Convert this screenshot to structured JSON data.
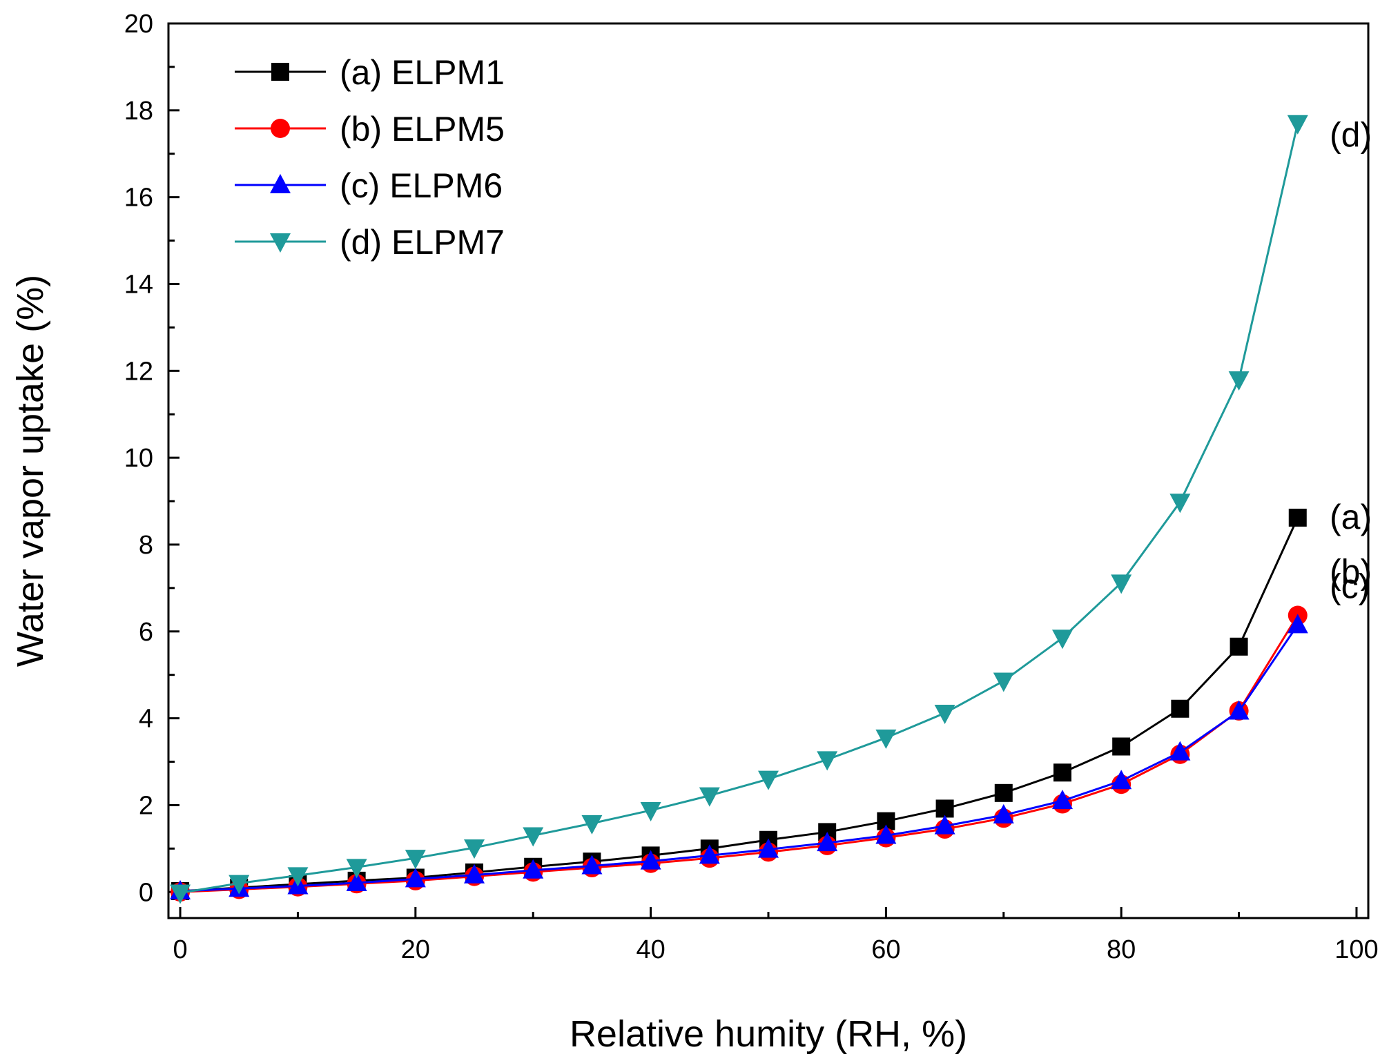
{
  "chart_data": {
    "type": "line",
    "title": "",
    "xlabel": "Relative humity (RH, %)",
    "ylabel": "Water vapor uptake (%)",
    "xlim": [
      -1,
      101
    ],
    "ylim": [
      -0.6,
      20
    ],
    "xticks": [
      0,
      20,
      40,
      60,
      80,
      100
    ],
    "yticks": [
      0,
      2,
      4,
      6,
      8,
      10,
      12,
      14,
      16,
      18,
      20
    ],
    "grid": false,
    "legend_position": "top-left",
    "x": [
      0,
      5,
      10,
      15,
      20,
      25,
      30,
      35,
      40,
      45,
      50,
      55,
      60,
      65,
      70,
      75,
      80,
      85,
      90,
      95
    ],
    "series": [
      {
        "name": "(a) ELPM1",
        "color": "#000000",
        "marker": "square",
        "values": [
          0.02,
          0.1,
          0.18,
          0.26,
          0.33,
          0.45,
          0.58,
          0.7,
          0.84,
          1.0,
          1.2,
          1.38,
          1.63,
          1.92,
          2.28,
          2.75,
          3.35,
          4.22,
          5.65,
          8.62
        ]
      },
      {
        "name": "(b) ELPM5",
        "color": "#ff0000",
        "marker": "circle",
        "values": [
          0.0,
          0.06,
          0.12,
          0.19,
          0.26,
          0.36,
          0.46,
          0.56,
          0.66,
          0.78,
          0.92,
          1.07,
          1.25,
          1.45,
          1.7,
          2.03,
          2.48,
          3.17,
          4.17,
          6.37
        ]
      },
      {
        "name": "(c) ELPM6",
        "color": "#0000ff",
        "marker": "triangle-up",
        "values": [
          0.02,
          0.08,
          0.14,
          0.21,
          0.3,
          0.39,
          0.5,
          0.6,
          0.71,
          0.84,
          0.98,
          1.13,
          1.3,
          1.52,
          1.77,
          2.1,
          2.56,
          3.22,
          4.16,
          6.15
        ]
      },
      {
        "name": "(d) ELPM7",
        "color": "#1f9a9a",
        "marker": "triangle-down",
        "values": [
          -0.02,
          0.2,
          0.38,
          0.57,
          0.78,
          1.02,
          1.3,
          1.58,
          1.88,
          2.22,
          2.6,
          3.05,
          3.55,
          4.12,
          4.86,
          5.85,
          7.12,
          8.98,
          11.8,
          17.7
        ]
      }
    ],
    "annotations": [
      {
        "text": "(d)",
        "series": 3
      },
      {
        "text": "(a)",
        "series": 0
      },
      {
        "text": "(b)",
        "series": 1
      },
      {
        "text": "(c)",
        "series": 2
      }
    ]
  }
}
